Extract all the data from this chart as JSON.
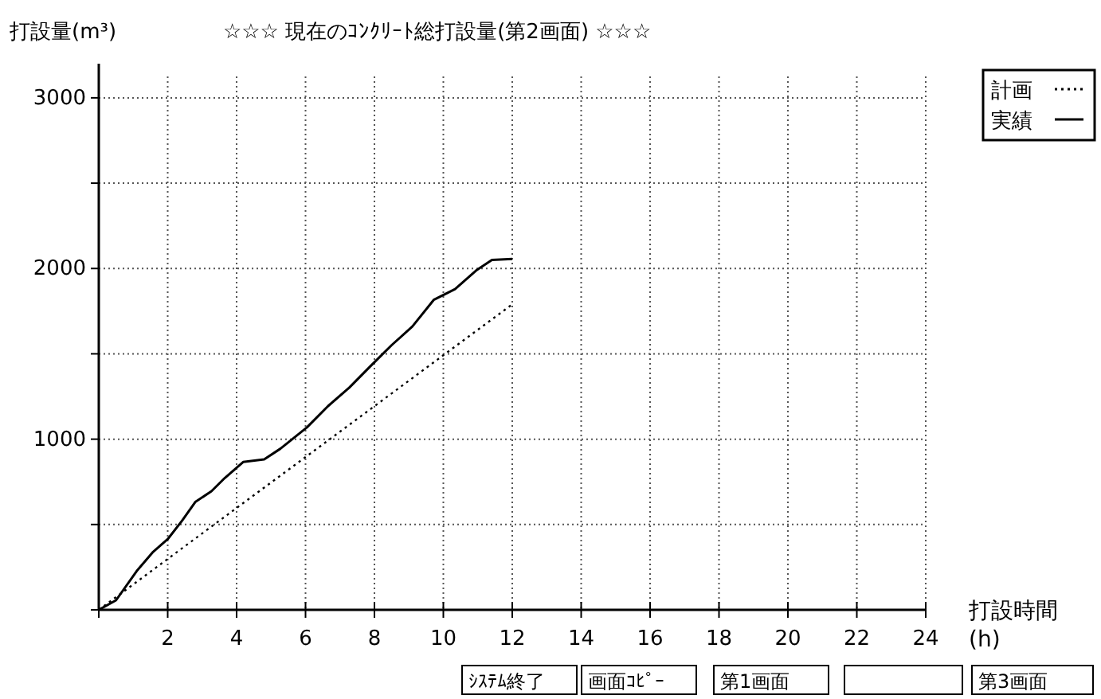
{
  "chart_data": {
    "type": "line",
    "title": "☆☆☆ 現在のｺﾝｸﾘｰﾄ総打設量(第2画面) ☆☆☆",
    "ylabel": "打設量(m³)",
    "xlabel": "打設時間 (h)",
    "xlim": [
      0,
      24
    ],
    "xticks": [
      {
        "value": 0,
        "label": null
      },
      2,
      4,
      6,
      8,
      10,
      12,
      14,
      16,
      18,
      20,
      22,
      24
    ],
    "ylim": [
      0,
      3200
    ],
    "yticks": [
      {
        "value": 0,
        "label": null
      },
      {
        "value": 500,
        "label": null
      },
      1000,
      {
        "value": 1500,
        "label": null
      },
      2000,
      {
        "value": 2500,
        "label": null
      },
      3000
    ],
    "grid": true,
    "legend": "top right",
    "series": [
      {
        "name": "計画",
        "color": "#000000",
        "line_style": "dotted",
        "x": [
          0,
          12
        ],
        "values": [
          0,
          1790
        ]
      },
      {
        "name": "実績",
        "color": "#000000",
        "line_style": "solid",
        "x": [
          0,
          0.5,
          1.1,
          1.56,
          2,
          2.42,
          2.8,
          3.27,
          3.66,
          4.19,
          4.8,
          5.27,
          6.04,
          6.65,
          7.27,
          7.88,
          8.5,
          9.1,
          9.72,
          10.34,
          10.95,
          11.41,
          12
        ],
        "values": [
          0,
          56,
          227,
          336,
          414,
          523,
          632,
          695,
          773,
          866,
          882,
          944,
          1069,
          1193,
          1302,
          1427,
          1551,
          1660,
          1816,
          1879,
          1988,
          2050,
          2056
        ]
      }
    ],
    "annotations": [
      "ｼｽﾃﾑ終了",
      "画面ｺﾋﾟｰ",
      "第1画面",
      "第3画面"
    ]
  }
}
